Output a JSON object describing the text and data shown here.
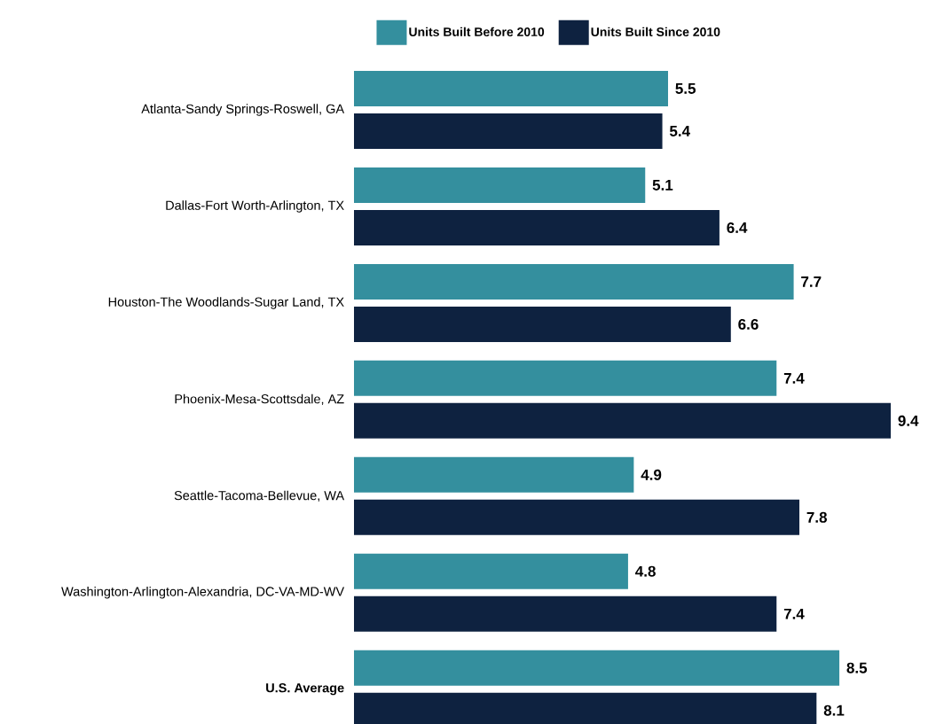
{
  "chart_data": {
    "type": "bar",
    "orientation": "horizontal",
    "categories": [
      "Atlanta-Sandy Springs-Roswell, GA",
      "Dallas-Fort Worth-Arlington, TX",
      "Houston-The Woodlands-Sugar Land, TX",
      "Phoenix-Mesa-Scottsdale, AZ",
      "Seattle-Tacoma-Bellevue, WA",
      "Washington-Arlington-Alexandria, DC-VA-MD-WV",
      "U.S. Average"
    ],
    "series": [
      {
        "name": "Units Built Before 2010",
        "color": "#348f9e",
        "values": [
          5.5,
          5.1,
          7.7,
          7.4,
          4.9,
          4.8,
          8.5
        ],
        "value_labels": [
          "5.5",
          "5.1",
          "7.7",
          "7.4",
          "4.9",
          "4.8",
          "8.5"
        ]
      },
      {
        "name": "Units Built Since 2010",
        "color": "#0e2240",
        "values": [
          5.4,
          6.4,
          6.6,
          9.4,
          7.8,
          7.4,
          8.1
        ],
        "value_labels": [
          "5.4",
          "6.4",
          "6.6",
          "9.4",
          "7.8",
          "7.4",
          "8.1"
        ]
      }
    ],
    "legend": "top",
    "tick_labels": "y"
  }
}
